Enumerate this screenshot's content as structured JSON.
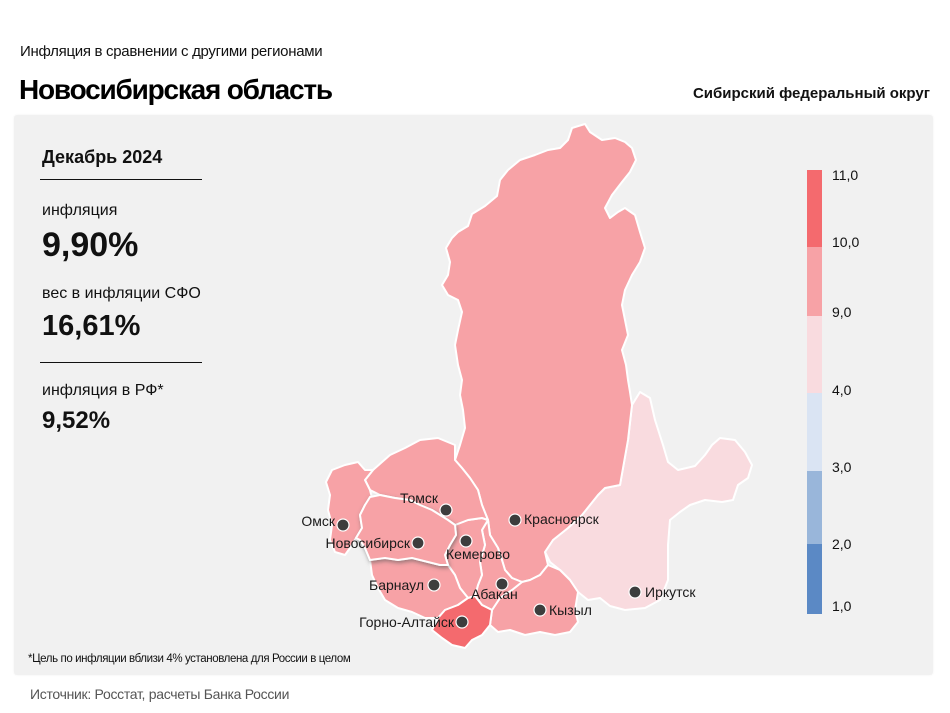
{
  "header": {
    "subtitle": "Инфляция  в сравнении  с другими  регионами",
    "title": "Новосибирская область",
    "district": "Сибирский федеральный округ"
  },
  "stats": {
    "period": "Декабрь 2024",
    "inflation_label": "инфляция",
    "inflation_value": "9,90%",
    "weight_label": "вес в инфляции  СФО",
    "weight_value": "16,61%",
    "rf_label": "инфляция  в РФ*",
    "rf_value": "9,52%"
  },
  "legend": {
    "ticks": [
      "11,0",
      "10,0",
      "9,0",
      "4,0",
      "3,0",
      "2,0",
      "1,0"
    ],
    "bins": [
      {
        "from": 10.0,
        "to": 11.0,
        "color": "#f46a6e"
      },
      {
        "from": 9.0,
        "to": 10.0,
        "color": "#f7a2a6"
      },
      {
        "from": 4.0,
        "to": 9.0,
        "color": "#f9dbdf"
      },
      {
        "from": 3.0,
        "to": 4.0,
        "color": "#dae4f3"
      },
      {
        "from": 2.0,
        "to": 3.0,
        "color": "#99b6da"
      },
      {
        "from": 1.0,
        "to": 2.0,
        "color": "#5b89c5"
      }
    ]
  },
  "regions": [
    {
      "name": "Красноярский край",
      "bin": "9-10",
      "color": "#f7a2a6"
    },
    {
      "name": "Иркутская область",
      "bin": "4-9",
      "color": "#f9dbdf"
    },
    {
      "name": "Омская область",
      "bin": "9-10",
      "color": "#f7a2a6"
    },
    {
      "name": "Томская область",
      "bin": "9-10",
      "color": "#f7a2a6"
    },
    {
      "name": "Новосибирская область",
      "bin": "9-10",
      "color": "#f7a2a6",
      "highlighted": true
    },
    {
      "name": "Кемеровская область",
      "bin": "9-10",
      "color": "#f7a2a6"
    },
    {
      "name": "Алтайский край",
      "bin": "9-10",
      "color": "#f7a2a6"
    },
    {
      "name": "Республика Алтай",
      "bin": "10-11",
      "color": "#f46a6e"
    },
    {
      "name": "Республика Хакасия",
      "bin": "9-10",
      "color": "#f7a2a6"
    },
    {
      "name": "Республика Тыва",
      "bin": "9-10",
      "color": "#f7a2a6"
    }
  ],
  "cities": [
    {
      "name": "Омск"
    },
    {
      "name": "Новосибирск"
    },
    {
      "name": "Томск"
    },
    {
      "name": "Кемерово"
    },
    {
      "name": "Барнаул"
    },
    {
      "name": "Горно-Алтайск"
    },
    {
      "name": "Абакан"
    },
    {
      "name": "Красноярск"
    },
    {
      "name": "Кызыл"
    },
    {
      "name": "Иркутск"
    }
  ],
  "footer": {
    "footnote": "*Цель по инфляции вблизи 4% установлена для России в целом",
    "source": "Источник: Росстат, расчеты Банка России"
  }
}
